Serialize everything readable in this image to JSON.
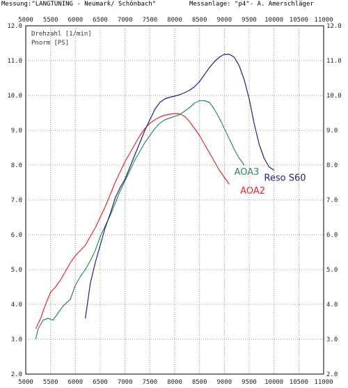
{
  "header": {
    "measurement": "Messung:\"LANGTUNING - Neumark/ Schönbach\"",
    "setup": "Messanlage: \"p4\"- A. Amerschläger"
  },
  "chart_data": {
    "type": "line",
    "title": "",
    "legend": {
      "entries": [
        "Drehzahl [1/min]",
        "Pnorm [PS]"
      ],
      "placement": "top-left"
    },
    "x_axis": {
      "range": [
        5000,
        11000
      ],
      "ticks": [
        5000,
        5500,
        6000,
        6500,
        7000,
        7500,
        8000,
        8500,
        9000,
        9500,
        10000,
        10500,
        11000
      ],
      "position": "top and bottom"
    },
    "y_axis": {
      "range": [
        2.0,
        12.0
      ],
      "ticks": [
        "2.0",
        "3.0",
        "4.0",
        "5.0",
        "6.0",
        "7.0",
        "8.0",
        "9.0",
        "10.0",
        "11.0",
        "12.0"
      ],
      "position": "left and right"
    },
    "grid": true,
    "series": [
      {
        "name": "AOA2",
        "color": "#e8232d",
        "points": [
          [
            5200,
            3.3
          ],
          [
            5300,
            3.6
          ],
          [
            5400,
            4.0
          ],
          [
            5500,
            4.35
          ],
          [
            5600,
            4.5
          ],
          [
            5700,
            4.7
          ],
          [
            5800,
            4.95
          ],
          [
            5900,
            5.2
          ],
          [
            6000,
            5.4
          ],
          [
            6100,
            5.55
          ],
          [
            6200,
            5.7
          ],
          [
            6300,
            5.95
          ],
          [
            6400,
            6.2
          ],
          [
            6500,
            6.5
          ],
          [
            6600,
            6.8
          ],
          [
            6700,
            7.15
          ],
          [
            6800,
            7.5
          ],
          [
            6900,
            7.8
          ],
          [
            7000,
            8.1
          ],
          [
            7100,
            8.35
          ],
          [
            7200,
            8.6
          ],
          [
            7300,
            8.85
          ],
          [
            7400,
            9.05
          ],
          [
            7500,
            9.2
          ],
          [
            7600,
            9.3
          ],
          [
            7700,
            9.38
          ],
          [
            7800,
            9.43
          ],
          [
            7900,
            9.46
          ],
          [
            8000,
            9.48
          ],
          [
            8100,
            9.47
          ],
          [
            8200,
            9.4
          ],
          [
            8300,
            9.25
          ],
          [
            8400,
            9.05
          ],
          [
            8500,
            8.85
          ],
          [
            8600,
            8.6
          ],
          [
            8700,
            8.35
          ],
          [
            8800,
            8.1
          ],
          [
            8900,
            7.85
          ],
          [
            9000,
            7.65
          ],
          [
            9100,
            7.45
          ]
        ]
      },
      {
        "name": "AOA3",
        "color": "#2e8b57",
        "points": [
          [
            5200,
            3.0
          ],
          [
            5250,
            3.3
          ],
          [
            5350,
            3.55
          ],
          [
            5450,
            3.6
          ],
          [
            5550,
            3.55
          ],
          [
            5650,
            3.75
          ],
          [
            5750,
            3.95
          ],
          [
            5900,
            4.15
          ],
          [
            6000,
            4.55
          ],
          [
            6100,
            4.8
          ],
          [
            6200,
            5.0
          ],
          [
            6300,
            5.25
          ],
          [
            6400,
            5.55
          ],
          [
            6500,
            5.95
          ],
          [
            6600,
            6.25
          ],
          [
            6700,
            6.55
          ],
          [
            6800,
            6.9
          ],
          [
            6900,
            7.25
          ],
          [
            7000,
            7.55
          ],
          [
            7100,
            7.85
          ],
          [
            7200,
            8.15
          ],
          [
            7300,
            8.4
          ],
          [
            7400,
            8.65
          ],
          [
            7500,
            8.85
          ],
          [
            7600,
            9.05
          ],
          [
            7700,
            9.2
          ],
          [
            7800,
            9.3
          ],
          [
            7900,
            9.35
          ],
          [
            8000,
            9.4
          ],
          [
            8100,
            9.45
          ],
          [
            8200,
            9.55
          ],
          [
            8300,
            9.65
          ],
          [
            8400,
            9.78
          ],
          [
            8500,
            9.85
          ],
          [
            8600,
            9.85
          ],
          [
            8700,
            9.8
          ],
          [
            8800,
            9.6
          ],
          [
            8900,
            9.35
          ],
          [
            9000,
            9.05
          ],
          [
            9100,
            8.75
          ],
          [
            9200,
            8.45
          ],
          [
            9300,
            8.2
          ],
          [
            9400,
            8.0
          ]
        ]
      },
      {
        "name": "Reso S60",
        "color": "#1f1f7a",
        "points": [
          [
            6200,
            3.6
          ],
          [
            6250,
            4.1
          ],
          [
            6300,
            4.6
          ],
          [
            6400,
            5.2
          ],
          [
            6500,
            5.7
          ],
          [
            6600,
            6.2
          ],
          [
            6700,
            6.6
          ],
          [
            6800,
            7.05
          ],
          [
            6900,
            7.35
          ],
          [
            7000,
            7.6
          ],
          [
            7100,
            7.95
          ],
          [
            7200,
            8.3
          ],
          [
            7300,
            8.65
          ],
          [
            7400,
            9.0
          ],
          [
            7500,
            9.3
          ],
          [
            7600,
            9.6
          ],
          [
            7700,
            9.8
          ],
          [
            7800,
            9.9
          ],
          [
            7900,
            9.95
          ],
          [
            8000,
            9.98
          ],
          [
            8100,
            10.02
          ],
          [
            8200,
            10.08
          ],
          [
            8300,
            10.15
          ],
          [
            8400,
            10.25
          ],
          [
            8500,
            10.4
          ],
          [
            8600,
            10.6
          ],
          [
            8700,
            10.8
          ],
          [
            8800,
            10.97
          ],
          [
            8900,
            11.1
          ],
          [
            9000,
            11.18
          ],
          [
            9100,
            11.18
          ],
          [
            9200,
            11.1
          ],
          [
            9300,
            10.85
          ],
          [
            9400,
            10.45
          ],
          [
            9500,
            9.9
          ],
          [
            9600,
            9.2
          ],
          [
            9700,
            8.6
          ],
          [
            9800,
            8.2
          ],
          [
            9900,
            7.95
          ],
          [
            10000,
            7.85
          ]
        ]
      }
    ],
    "series_labels": [
      {
        "text": "AOA2",
        "color": "#e8232d",
        "at": [
          9320,
          7.18
        ]
      },
      {
        "text": "AOA3",
        "color": "#2e8b57",
        "at": [
          9200,
          7.72
        ]
      },
      {
        "text": "Reso S60",
        "color": "#1f1f7a",
        "at": [
          9800,
          7.55
        ]
      }
    ]
  }
}
